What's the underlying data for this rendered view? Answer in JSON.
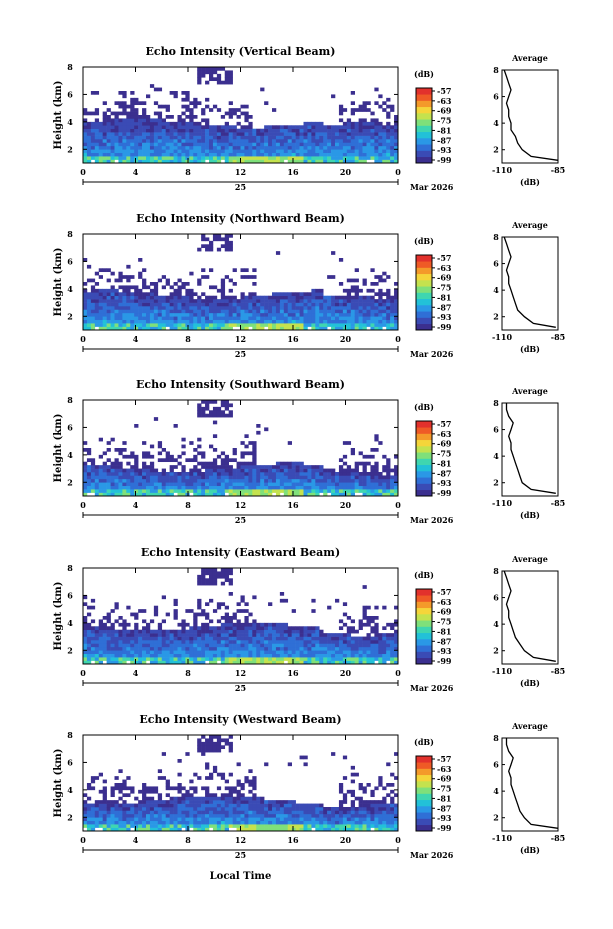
{
  "figure": {
    "footer_xlabel": "Local Time"
  },
  "palette": {
    "no_data": "#ffffff",
    "colormap": [
      "#3b2f8f",
      "#3a4bb5",
      "#2f6fd6",
      "#2a98e6",
      "#22c1d8",
      "#3fd6b0",
      "#7fe07a",
      "#c4e24e",
      "#f5d53a",
      "#f49a2a",
      "#ef5a26",
      "#e2312c"
    ]
  },
  "chart_data": [
    {
      "type": "heatmap",
      "title": "Echo Intensity (Vertical Beam)",
      "ylabel": "Height (km)",
      "ylim": [
        1,
        8
      ],
      "yticks": [
        "8",
        "6",
        "4",
        "2"
      ],
      "ytick_values": [
        8,
        6,
        4,
        2
      ],
      "xlim": [
        0,
        24
      ],
      "xticks": [
        "0",
        "4",
        "8",
        "12",
        "16",
        "20",
        "0"
      ],
      "date_day": "25",
      "date_label": "Mar 2026",
      "colorbar": {
        "unit": "(dB)",
        "ticks": [
          "-57",
          "-63",
          "-69",
          "-75",
          "-81",
          "-87",
          "-93",
          "-99"
        ]
      },
      "profile": {
        "title": "Average",
        "xlabel": "(dB)",
        "xticks": [
          "-110",
          "-85"
        ],
        "xlim": [
          -110,
          -85
        ],
        "heights": [
          1.2,
          1.5,
          2,
          2.5,
          3,
          3.5,
          4,
          4.5,
          5,
          5.5,
          6,
          6.5,
          7,
          7.5,
          8
        ],
        "values": [
          -85,
          -97,
          -101,
          -103,
          -104,
          -106,
          -106,
          -107,
          -107,
          -108,
          -107,
          -106,
          -107,
          -108,
          -109
        ]
      }
    },
    {
      "type": "heatmap",
      "title": "Echo Intensity (Northward Beam)",
      "ylabel": "Height (km)",
      "ylim": [
        1,
        8
      ],
      "yticks": [
        "8",
        "6",
        "4",
        "2"
      ],
      "ytick_values": [
        8,
        6,
        4,
        2
      ],
      "xlim": [
        0,
        24
      ],
      "xticks": [
        "0",
        "4",
        "8",
        "12",
        "16",
        "20",
        "0"
      ],
      "date_day": "25",
      "date_label": "Mar 2026",
      "colorbar": {
        "unit": "(dB)",
        "ticks": [
          "-57",
          "-63",
          "-69",
          "-75",
          "-81",
          "-87",
          "-93",
          "-99"
        ]
      },
      "profile": {
        "title": "Average",
        "xlabel": "(dB)",
        "xticks": [
          "-110",
          "-85"
        ],
        "xlim": [
          -110,
          -85
        ],
        "heights": [
          1.2,
          1.5,
          2,
          2.5,
          3,
          3.5,
          4,
          4.5,
          5,
          5.5,
          6,
          6.5,
          7,
          7.5,
          8
        ],
        "values": [
          -86,
          -96,
          -100,
          -103,
          -104,
          -105,
          -106,
          -107,
          -107,
          -108,
          -107,
          -106,
          -107,
          -108,
          -109
        ]
      }
    },
    {
      "type": "heatmap",
      "title": "Echo Intensity (Southward Beam)",
      "ylabel": "Height (km)",
      "ylim": [
        1,
        8
      ],
      "yticks": [
        "8",
        "6",
        "4",
        "2"
      ],
      "ytick_values": [
        8,
        6,
        4,
        2
      ],
      "xlim": [
        0,
        24
      ],
      "xticks": [
        "0",
        "4",
        "8",
        "12",
        "16",
        "20",
        "0"
      ],
      "date_day": "25",
      "date_label": "Mar 2026",
      "colorbar": {
        "unit": "(dB)",
        "ticks": [
          "-57",
          "-63",
          "-69",
          "-75",
          "-81",
          "-87",
          "-93",
          "-99"
        ]
      },
      "profile": {
        "title": "Average",
        "xlabel": "(dB)",
        "xticks": [
          "-110",
          "-85"
        ],
        "xlim": [
          -110,
          -85
        ],
        "heights": [
          1.2,
          1.5,
          2,
          2.5,
          3,
          3.5,
          4,
          4.5,
          5,
          5.5,
          6,
          6.5,
          7,
          7.5,
          8
        ],
        "values": [
          -86,
          -97,
          -101,
          -102,
          -103,
          -104,
          -105,
          -106,
          -106,
          -107,
          -106,
          -105,
          -107,
          -108,
          -108
        ]
      }
    },
    {
      "type": "heatmap",
      "title": "Echo Intensity (Eastward Beam)",
      "ylabel": "Height (km)",
      "ylim": [
        1,
        8
      ],
      "yticks": [
        "8",
        "6",
        "4",
        "2"
      ],
      "ytick_values": [
        8,
        6,
        4,
        2
      ],
      "xlim": [
        0,
        24
      ],
      "xticks": [
        "0",
        "4",
        "8",
        "12",
        "16",
        "20",
        "0"
      ],
      "date_day": "25",
      "date_label": "Mar 2026",
      "colorbar": {
        "unit": "(dB)",
        "ticks": [
          "-57",
          "-63",
          "-69",
          "-75",
          "-81",
          "-87",
          "-93",
          "-99"
        ]
      },
      "profile": {
        "title": "Average",
        "xlabel": "(dB)",
        "xticks": [
          "-110",
          "-85"
        ],
        "xlim": [
          -110,
          -85
        ],
        "heights": [
          1.2,
          1.5,
          2,
          2.5,
          3,
          3.5,
          4,
          4.5,
          5,
          5.5,
          6,
          6.5,
          7,
          7.5,
          8
        ],
        "values": [
          -86,
          -96,
          -100,
          -102,
          -104,
          -105,
          -106,
          -107,
          -107,
          -108,
          -107,
          -106,
          -107,
          -108,
          -109
        ]
      }
    },
    {
      "type": "heatmap",
      "title": "Echo Intensity (Westward Beam)",
      "ylabel": "Height (km)",
      "ylim": [
        1,
        8
      ],
      "yticks": [
        "8",
        "6",
        "4",
        "2"
      ],
      "ytick_values": [
        8,
        6,
        4,
        2
      ],
      "xlim": [
        0,
        24
      ],
      "xticks": [
        "0",
        "4",
        "8",
        "12",
        "16",
        "20",
        "0"
      ],
      "date_day": "25",
      "date_label": "Mar 2026",
      "colorbar": {
        "unit": "(dB)",
        "ticks": [
          "-57",
          "-63",
          "-69",
          "-75",
          "-81",
          "-87",
          "-93",
          "-99"
        ]
      },
      "profile": {
        "title": "Average",
        "xlabel": "(dB)",
        "xticks": [
          "-110",
          "-85"
        ],
        "xlim": [
          -110,
          -85
        ],
        "heights": [
          1.2,
          1.5,
          2,
          2.5,
          3,
          3.5,
          4,
          4.5,
          5,
          5.5,
          6,
          6.5,
          7,
          7.5,
          8
        ],
        "values": [
          -85,
          -97,
          -100,
          -102,
          -103,
          -104,
          -105,
          -106,
          -106,
          -107,
          -106,
          -105,
          -107,
          -108,
          -108
        ]
      }
    }
  ]
}
